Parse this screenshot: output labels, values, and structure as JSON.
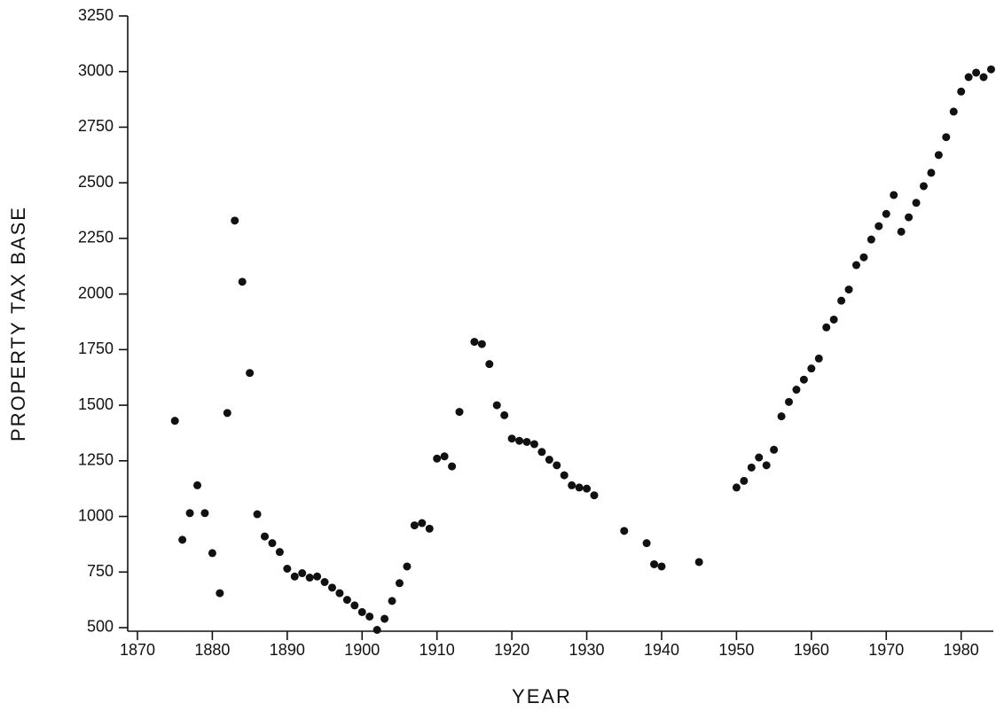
{
  "chart_data": {
    "type": "scatter",
    "x_label": "YEAR",
    "y_label": "PROPERTY TAX BASE",
    "color": "#111111",
    "x": [
      1875,
      1876,
      1877,
      1878,
      1879,
      1880,
      1881,
      1882,
      1883,
      1884,
      1885,
      1886,
      1887,
      1888,
      1889,
      1890,
      1891,
      1892,
      1893,
      1894,
      1895,
      1896,
      1897,
      1898,
      1899,
      1900,
      1901,
      1902,
      1903,
      1904,
      1905,
      1906,
      1907,
      1908,
      1909,
      1910,
      1911,
      1912,
      1913,
      1915,
      1916,
      1917,
      1918,
      1919,
      1920,
      1921,
      1922,
      1923,
      1924,
      1925,
      1926,
      1927,
      1928,
      1929,
      1930,
      1931,
      1935,
      1938,
      1939,
      1940,
      1945,
      1950,
      1951,
      1952,
      1953,
      1954,
      1955,
      1956,
      1957,
      1958,
      1959,
      1960,
      1961,
      1962,
      1963,
      1964,
      1965,
      1966,
      1967,
      1968,
      1969,
      1970,
      1971,
      1972,
      1973,
      1974,
      1975,
      1976,
      1977,
      1978,
      1979,
      1980,
      1981,
      1982,
      1983,
      1984
    ],
    "values": [
      1430,
      895,
      1015,
      1140,
      1015,
      835,
      655,
      1465,
      2330,
      2055,
      1645,
      1010,
      910,
      880,
      840,
      765,
      730,
      745,
      725,
      730,
      705,
      680,
      655,
      625,
      600,
      570,
      550,
      490,
      540,
      620,
      700,
      775,
      960,
      970,
      945,
      1260,
      1270,
      1225,
      1470,
      1785,
      1775,
      1685,
      1500,
      1455,
      1350,
      1340,
      1335,
      1325,
      1290,
      1255,
      1230,
      1185,
      1140,
      1130,
      1125,
      1095,
      935,
      880,
      785,
      775,
      795,
      1130,
      1160,
      1220,
      1265,
      1230,
      1300,
      1450,
      1515,
      1570,
      1615,
      1665,
      1710,
      1850,
      1885,
      1970,
      2020,
      2130,
      2165,
      2245,
      2305,
      2360,
      2445,
      2280,
      2345,
      2410,
      2485,
      2545,
      2625,
      2705,
      2820,
      2910,
      2975,
      2995,
      2975,
      3010
    ],
    "xlim": [
      1868.7,
      1984.3
    ],
    "xticks": [
      1870,
      1880,
      1890,
      1900,
      1910,
      1920,
      1930,
      1940,
      1950,
      1960,
      1970,
      1980
    ],
    "ylim": [
      484,
      3250
    ],
    "yticks": [
      500,
      750,
      1000,
      1250,
      1500,
      1750,
      2000,
      2250,
      2500,
      2750,
      3000,
      3250
    ]
  }
}
